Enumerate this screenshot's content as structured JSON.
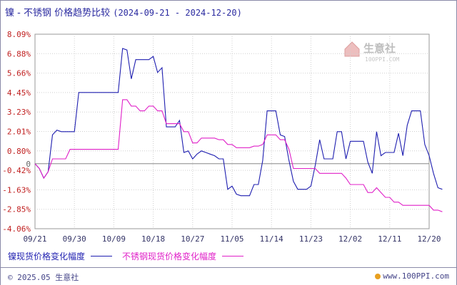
{
  "title": {
    "main": "镍 - 不锈钢 价格趋势比较",
    "range": "(2024-09-21 - 2024-12-20)"
  },
  "watermark": {
    "name": "生意社",
    "site": "100PPI.COM"
  },
  "legend": [
    {
      "label": "镍现货价格变化幅度",
      "color": "#1f1fb0"
    },
    {
      "label": "不锈钢现货价格变化幅度",
      "color": "#e020c8"
    }
  ],
  "footer": {
    "copyright": "© 2025.05 生意社",
    "url": "www.100PPI.com"
  },
  "chart_data": {
    "type": "line",
    "title": "镍 - 不锈钢 价格趋势比较",
    "xlabel": "",
    "ylabel": "",
    "x_ticks": [
      "09/21",
      "09/30",
      "10/09",
      "10/18",
      "10/27",
      "11/05",
      "11/14",
      "11/23",
      "12/02",
      "12/11",
      "12/20"
    ],
    "y_ticks": [
      "8.09%",
      "6.88%",
      "5.66%",
      "4.45%",
      "3.23%",
      "2.01%",
      "0.80%",
      "-0.42%",
      "-1.63%",
      "-2.85%",
      "-4.06%"
    ],
    "ylim": [
      -4.06,
      8.09
    ],
    "zero_line": true,
    "grid": true,
    "x_unit": "days since 09/21",
    "series": [
      {
        "name": "镍现货价格变化幅度",
        "color": "#1f1fb0",
        "points": [
          [
            0,
            0
          ],
          [
            1,
            -0.3
          ],
          [
            2,
            -0.9
          ],
          [
            3,
            -0.5
          ],
          [
            4,
            1.8
          ],
          [
            5,
            2.1
          ],
          [
            6,
            2.0
          ],
          [
            7,
            2.0
          ],
          [
            8,
            2.0
          ],
          [
            9,
            2.0
          ],
          [
            10,
            4.45
          ],
          [
            11,
            4.45
          ],
          [
            12,
            4.45
          ],
          [
            13,
            4.45
          ],
          [
            14,
            4.45
          ],
          [
            15,
            4.45
          ],
          [
            16,
            4.45
          ],
          [
            17,
            4.45
          ],
          [
            18,
            4.45
          ],
          [
            19,
            4.45
          ],
          [
            20,
            7.2
          ],
          [
            21,
            7.1
          ],
          [
            22,
            5.3
          ],
          [
            23,
            6.5
          ],
          [
            24,
            6.5
          ],
          [
            25,
            6.5
          ],
          [
            26,
            6.5
          ],
          [
            27,
            6.7
          ],
          [
            28,
            5.7
          ],
          [
            29,
            6.0
          ],
          [
            30,
            2.3
          ],
          [
            31,
            2.3
          ],
          [
            32,
            2.3
          ],
          [
            33,
            2.7
          ],
          [
            34,
            0.7
          ],
          [
            35,
            0.8
          ],
          [
            36,
            0.3
          ],
          [
            37,
            0.6
          ],
          [
            38,
            0.8
          ],
          [
            39,
            0.7
          ],
          [
            40,
            0.6
          ],
          [
            41,
            0.5
          ],
          [
            42,
            0.3
          ],
          [
            43,
            0.3
          ],
          [
            44,
            -1.6
          ],
          [
            45,
            -1.4
          ],
          [
            46,
            -1.9
          ],
          [
            47,
            -2.0
          ],
          [
            48,
            -2.0
          ],
          [
            49,
            -2.0
          ],
          [
            50,
            -1.3
          ],
          [
            51,
            -1.3
          ],
          [
            52,
            0.2
          ],
          [
            53,
            3.3
          ],
          [
            54,
            3.3
          ],
          [
            55,
            3.3
          ],
          [
            56,
            1.8
          ],
          [
            57,
            1.7
          ],
          [
            58,
            0.2
          ],
          [
            59,
            -1.1
          ],
          [
            60,
            -1.6
          ],
          [
            61,
            -1.6
          ],
          [
            62,
            -1.6
          ],
          [
            63,
            -1.4
          ],
          [
            64,
            -0.1
          ],
          [
            65,
            1.5
          ],
          [
            66,
            0.3
          ],
          [
            67,
            0.3
          ],
          [
            68,
            0.3
          ],
          [
            69,
            2.0
          ],
          [
            70,
            2.0
          ],
          [
            71,
            0.3
          ],
          [
            72,
            1.4
          ],
          [
            73,
            1.4
          ],
          [
            74,
            1.4
          ],
          [
            75,
            1.4
          ],
          [
            76,
            0.1
          ],
          [
            77,
            -0.6
          ],
          [
            78,
            2.0
          ],
          [
            79,
            0.5
          ],
          [
            80,
            0.7
          ],
          [
            81,
            0.7
          ],
          [
            82,
            0.7
          ],
          [
            83,
            1.9
          ],
          [
            84,
            0.5
          ],
          [
            85,
            2.4
          ],
          [
            86,
            3.3
          ],
          [
            87,
            3.3
          ],
          [
            88,
            3.3
          ],
          [
            89,
            1.2
          ],
          [
            90,
            0.5
          ],
          [
            91,
            -0.6
          ],
          [
            92,
            -1.5
          ],
          [
            93,
            -1.6
          ]
        ]
      },
      {
        "name": "不锈钢现货价格变化幅度",
        "color": "#e020c8",
        "points": [
          [
            0,
            0
          ],
          [
            1,
            -0.3
          ],
          [
            2,
            -0.9
          ],
          [
            3,
            -0.5
          ],
          [
            4,
            0.3
          ],
          [
            5,
            0.3
          ],
          [
            6,
            0.3
          ],
          [
            7,
            0.3
          ],
          [
            8,
            0.9
          ],
          [
            9,
            0.9
          ],
          [
            10,
            0.9
          ],
          [
            11,
            0.9
          ],
          [
            12,
            0.9
          ],
          [
            13,
            0.9
          ],
          [
            14,
            0.9
          ],
          [
            15,
            0.9
          ],
          [
            16,
            0.9
          ],
          [
            17,
            0.9
          ],
          [
            18,
            0.9
          ],
          [
            19,
            0.9
          ],
          [
            20,
            4.0
          ],
          [
            21,
            4.0
          ],
          [
            22,
            3.6
          ],
          [
            23,
            3.6
          ],
          [
            24,
            3.3
          ],
          [
            25,
            3.3
          ],
          [
            26,
            3.6
          ],
          [
            27,
            3.6
          ],
          [
            28,
            3.3
          ],
          [
            29,
            3.3
          ],
          [
            30,
            2.5
          ],
          [
            31,
            2.5
          ],
          [
            32,
            2.5
          ],
          [
            33,
            2.5
          ],
          [
            34,
            2.0
          ],
          [
            35,
            2.0
          ],
          [
            36,
            1.3
          ],
          [
            37,
            1.3
          ],
          [
            38,
            1.6
          ],
          [
            39,
            1.6
          ],
          [
            40,
            1.6
          ],
          [
            41,
            1.6
          ],
          [
            42,
            1.5
          ],
          [
            43,
            1.5
          ],
          [
            44,
            1.2
          ],
          [
            45,
            1.2
          ],
          [
            46,
            1.0
          ],
          [
            47,
            1.0
          ],
          [
            48,
            1.0
          ],
          [
            49,
            1.0
          ],
          [
            50,
            1.1
          ],
          [
            51,
            1.1
          ],
          [
            52,
            1.2
          ],
          [
            53,
            1.8
          ],
          [
            54,
            1.8
          ],
          [
            55,
            1.8
          ],
          [
            56,
            1.5
          ],
          [
            57,
            1.5
          ],
          [
            58,
            0.9
          ],
          [
            59,
            -0.3
          ],
          [
            60,
            -0.3
          ],
          [
            61,
            -0.3
          ],
          [
            62,
            -0.3
          ],
          [
            63,
            -0.3
          ],
          [
            64,
            -0.3
          ],
          [
            65,
            -0.6
          ],
          [
            66,
            -0.6
          ],
          [
            67,
            -0.6
          ],
          [
            68,
            -0.6
          ],
          [
            69,
            -0.6
          ],
          [
            70,
            -0.6
          ],
          [
            71,
            -0.9
          ],
          [
            72,
            -1.3
          ],
          [
            73,
            -1.3
          ],
          [
            74,
            -1.3
          ],
          [
            75,
            -1.3
          ],
          [
            76,
            -1.8
          ],
          [
            77,
            -1.8
          ],
          [
            78,
            -1.5
          ],
          [
            79,
            -1.8
          ],
          [
            80,
            -2.1
          ],
          [
            81,
            -2.1
          ],
          [
            82,
            -2.4
          ],
          [
            83,
            -2.4
          ],
          [
            84,
            -2.6
          ],
          [
            85,
            -2.6
          ],
          [
            86,
            -2.6
          ],
          [
            87,
            -2.6
          ],
          [
            88,
            -2.6
          ],
          [
            89,
            -2.6
          ],
          [
            90,
            -2.6
          ],
          [
            91,
            -2.9
          ],
          [
            92,
            -2.9
          ],
          [
            93,
            -3.0
          ]
        ]
      }
    ]
  }
}
